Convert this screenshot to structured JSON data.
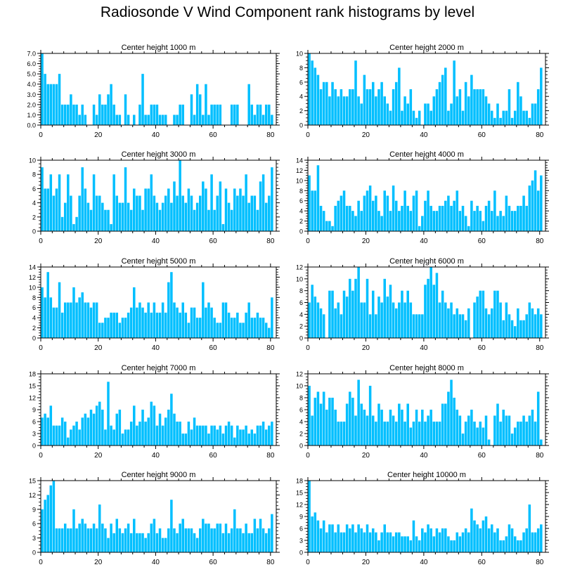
{
  "title": "Radiosonde V Wind Component rank histograms by level",
  "bar_color": "#00BFFF",
  "chart_data": [
    {
      "type": "bar",
      "title": "Center height 1000 m",
      "xlabel": "",
      "ylabel": "",
      "xlim": [
        0,
        82
      ],
      "xticks": [
        0,
        20,
        40,
        60,
        80
      ],
      "ylim": [
        0,
        7
      ],
      "yticks": [
        "0.0",
        "1.0",
        "2.0",
        "3.0",
        "4.0",
        "5.0",
        "6.0",
        "7.0"
      ],
      "values": [
        7,
        5,
        4,
        4,
        4,
        4,
        5,
        2,
        2,
        2,
        3,
        2,
        2,
        1,
        2,
        1,
        0,
        0,
        2,
        1,
        3,
        2,
        2,
        3,
        4,
        2,
        1,
        1,
        0,
        3,
        1,
        0,
        1,
        0,
        2,
        5,
        1,
        1,
        2,
        2,
        2,
        1,
        1,
        1,
        0,
        0,
        1,
        1,
        2,
        2,
        0,
        0,
        3,
        1,
        4,
        3,
        1,
        4,
        1,
        2,
        2,
        2,
        2,
        0,
        0,
        0,
        2,
        2,
        2,
        0,
        0,
        0,
        4,
        2,
        1,
        2,
        2,
        1,
        2,
        2,
        1
      ]
    },
    {
      "type": "bar",
      "title": "Center height 2000 m",
      "xlabel": "",
      "ylabel": "",
      "xlim": [
        0,
        82
      ],
      "xticks": [
        0,
        20,
        40,
        60,
        80
      ],
      "ylim": [
        0,
        10
      ],
      "yticks": [
        "0",
        "2",
        "4",
        "6",
        "8",
        "10"
      ],
      "values": [
        10,
        9,
        8,
        7,
        5,
        6,
        6,
        4,
        6,
        5,
        4,
        5,
        4,
        4,
        5,
        5,
        9,
        4,
        3,
        7,
        5,
        5,
        6,
        4,
        5,
        6,
        4,
        3,
        2,
        5,
        6,
        8,
        2,
        4,
        3,
        5,
        2,
        1,
        2,
        0,
        3,
        3,
        2,
        4,
        5,
        6,
        7,
        8,
        2,
        3,
        9,
        4,
        5,
        2,
        6,
        4,
        7,
        5,
        5,
        5,
        5,
        4,
        3,
        2,
        1,
        3,
        1,
        2,
        2,
        5,
        1,
        2,
        6,
        4,
        2,
        2,
        1,
        3,
        3,
        5,
        8
      ]
    },
    {
      "type": "bar",
      "title": "Center height 3000 m",
      "xlabel": "",
      "ylabel": "",
      "xlim": [
        0,
        82
      ],
      "xticks": [
        0,
        20,
        40,
        60,
        80
      ],
      "ylim": [
        0,
        10
      ],
      "yticks": [
        "0",
        "2",
        "4",
        "6",
        "8",
        "10"
      ],
      "values": [
        9,
        6,
        6,
        8,
        5,
        6,
        8,
        2,
        4,
        8,
        5,
        1,
        2,
        5,
        9,
        6,
        4,
        3,
        8,
        5,
        5,
        4,
        3,
        3,
        1,
        8,
        5,
        4,
        4,
        9,
        4,
        3,
        6,
        5,
        5,
        3,
        6,
        6,
        8,
        5,
        4,
        3,
        4,
        5,
        6,
        4,
        7,
        5,
        10,
        5,
        4,
        6,
        5,
        3,
        4,
        5,
        7,
        6,
        3,
        8,
        3,
        5,
        7,
        1,
        6,
        4,
        3,
        6,
        5,
        6,
        5,
        8,
        4,
        5,
        5,
        3,
        7,
        8,
        4,
        5,
        9
      ]
    },
    {
      "type": "bar",
      "title": "Center height 4000 m",
      "xlabel": "",
      "ylabel": "",
      "xlim": [
        0,
        82
      ],
      "xticks": [
        0,
        20,
        40,
        60,
        80
      ],
      "ylim": [
        0,
        14
      ],
      "yticks": [
        "0",
        "2",
        "4",
        "6",
        "8",
        "10",
        "12",
        "14"
      ],
      "values": [
        11,
        8,
        8,
        13,
        5,
        4,
        2,
        2,
        1,
        5,
        6,
        7,
        8,
        5,
        5,
        4,
        3,
        6,
        4,
        7,
        8,
        9,
        6,
        7,
        4,
        3,
        8,
        7,
        4,
        9,
        6,
        4,
        5,
        8,
        5,
        4,
        7,
        8,
        1,
        3,
        6,
        8,
        5,
        4,
        4,
        5,
        5,
        6,
        7,
        5,
        6,
        8,
        4,
        5,
        3,
        1,
        6,
        4,
        5,
        4,
        2,
        5,
        6,
        4,
        8,
        3,
        4,
        3,
        7,
        5,
        4,
        4,
        5,
        5,
        7,
        5,
        9,
        10,
        12,
        8,
        11
      ]
    },
    {
      "type": "bar",
      "title": "Center height 5000 m",
      "xlabel": "",
      "ylabel": "",
      "xlim": [
        0,
        82
      ],
      "xticks": [
        0,
        20,
        40,
        60,
        80
      ],
      "ylim": [
        0,
        14
      ],
      "yticks": [
        "0",
        "2",
        "4",
        "6",
        "8",
        "10",
        "12",
        "14"
      ],
      "values": [
        10,
        8,
        13,
        8,
        6,
        6,
        11,
        5,
        7,
        7,
        7,
        10,
        7,
        8,
        9,
        7,
        7,
        6,
        7,
        7,
        3,
        3,
        4,
        4,
        5,
        5,
        5,
        3,
        4,
        4,
        5,
        6,
        10,
        6,
        7,
        6,
        5,
        7,
        5,
        7,
        5,
        5,
        7,
        5,
        11,
        13,
        7,
        6,
        5,
        7,
        5,
        3,
        6,
        6,
        4,
        4,
        11,
        6,
        7,
        6,
        4,
        3,
        3,
        7,
        7,
        5,
        4,
        4,
        5,
        3,
        3,
        5,
        7,
        4,
        4,
        5,
        4,
        4,
        3,
        2,
        8
      ]
    },
    {
      "type": "bar",
      "title": "Center height 6000 m",
      "xlabel": "",
      "ylabel": "",
      "xlim": [
        0,
        82
      ],
      "xticks": [
        0,
        20,
        40,
        60,
        80
      ],
      "ylim": [
        0,
        12
      ],
      "yticks": [
        "0",
        "2",
        "4",
        "6",
        "8",
        "10",
        "12"
      ],
      "values": [
        6,
        9,
        7,
        6,
        5,
        4,
        0,
        8,
        8,
        5,
        6,
        4,
        8,
        7,
        10,
        8,
        10,
        12,
        6,
        6,
        10,
        4,
        8,
        4,
        7,
        6,
        10,
        7,
        9,
        6,
        5,
        6,
        8,
        6,
        8,
        6,
        4,
        4,
        4,
        4,
        9,
        10,
        12,
        9,
        11,
        6,
        8,
        6,
        5,
        6,
        4,
        5,
        4,
        4,
        3,
        5,
        0,
        6,
        7,
        8,
        8,
        5,
        4,
        5,
        8,
        8,
        6,
        3,
        6,
        4,
        3,
        2,
        5,
        3,
        3,
        4,
        6,
        5,
        4,
        5,
        4
      ]
    },
    {
      "type": "bar",
      "title": "Center height 7000 m",
      "xlabel": "",
      "ylabel": "",
      "xlim": [
        0,
        82
      ],
      "xticks": [
        0,
        20,
        40,
        60,
        80
      ],
      "ylim": [
        0,
        18
      ],
      "yticks": [
        "0",
        "3",
        "6",
        "9",
        "12",
        "15",
        "18"
      ],
      "values": [
        7,
        8,
        7,
        10,
        5,
        5,
        5,
        7,
        6,
        2,
        4,
        5,
        6,
        4,
        7,
        8,
        7,
        9,
        8,
        10,
        11,
        9,
        4,
        16,
        5,
        4,
        8,
        9,
        3,
        4,
        4,
        6,
        10,
        5,
        6,
        9,
        6,
        7,
        11,
        10,
        5,
        8,
        5,
        7,
        9,
        13,
        8,
        6,
        6,
        3,
        3,
        6,
        4,
        7,
        5,
        5,
        5,
        5,
        3,
        5,
        5,
        4,
        5,
        3,
        5,
        6,
        5,
        2,
        5,
        4,
        4,
        5,
        3,
        4,
        3,
        5,
        5,
        6,
        4,
        5,
        6
      ]
    },
    {
      "type": "bar",
      "title": "Center height 8000 m",
      "xlabel": "",
      "ylabel": "",
      "xlim": [
        0,
        82
      ],
      "xticks": [
        0,
        20,
        40,
        60,
        80
      ],
      "ylim": [
        0,
        12
      ],
      "yticks": [
        "0",
        "2",
        "4",
        "6",
        "8",
        "10",
        "12"
      ],
      "values": [
        10,
        5,
        8,
        9,
        7,
        9,
        6,
        8,
        8,
        6,
        4,
        4,
        4,
        7,
        9,
        8,
        5,
        11,
        7,
        6,
        5,
        10,
        5,
        4,
        7,
        6,
        4,
        4,
        6,
        5,
        4,
        7,
        6,
        4,
        7,
        3,
        4,
        6,
        4,
        6,
        4,
        5,
        6,
        4,
        4,
        4,
        7,
        7,
        9,
        11,
        8,
        6,
        5,
        2,
        4,
        5,
        6,
        4,
        3,
        4,
        3,
        5,
        1,
        0,
        5,
        7,
        4,
        6,
        5,
        5,
        2,
        3,
        4,
        4,
        5,
        4,
        5,
        6,
        4,
        9,
        1
      ]
    },
    {
      "type": "bar",
      "title": "Center height 9000 m",
      "xlabel": "",
      "ylabel": "",
      "xlim": [
        0,
        82
      ],
      "xticks": [
        0,
        20,
        40,
        60,
        80
      ],
      "ylim": [
        0,
        15
      ],
      "yticks": [
        "0",
        "3",
        "6",
        "9",
        "12",
        "15"
      ],
      "values": [
        9,
        11,
        12,
        14,
        15,
        5,
        5,
        5,
        6,
        5,
        5,
        9,
        5,
        6,
        7,
        6,
        5,
        5,
        6,
        5,
        10,
        6,
        5,
        3,
        6,
        4,
        7,
        5,
        4,
        5,
        6,
        4,
        7,
        4,
        4,
        4,
        3,
        4,
        6,
        7,
        4,
        5,
        3,
        3,
        5,
        11,
        5,
        4,
        6,
        7,
        5,
        5,
        5,
        4,
        3,
        5,
        7,
        6,
        6,
        5,
        5,
        6,
        6,
        4,
        6,
        4,
        5,
        9,
        5,
        5,
        4,
        6,
        4,
        4,
        7,
        5,
        7,
        5,
        4,
        5,
        8
      ]
    },
    {
      "type": "bar",
      "title": "Center height 10000 m",
      "xlabel": "",
      "ylabel": "",
      "xlim": [
        0,
        82
      ],
      "xticks": [
        0,
        20,
        40,
        60,
        80
      ],
      "ylim": [
        0,
        18
      ],
      "yticks": [
        "0",
        "3",
        "6",
        "9",
        "12",
        "15",
        "18"
      ],
      "values": [
        18,
        9,
        10,
        8,
        6,
        8,
        5,
        7,
        7,
        5,
        7,
        5,
        5,
        7,
        6,
        7,
        5,
        7,
        6,
        5,
        7,
        5,
        6,
        5,
        3,
        5,
        7,
        5,
        5,
        4,
        5,
        5,
        4,
        4,
        4,
        3,
        8,
        4,
        3,
        6,
        5,
        7,
        6,
        4,
        6,
        5,
        6,
        6,
        4,
        3,
        3,
        5,
        4,
        5,
        6,
        5,
        11,
        8,
        7,
        6,
        8,
        9,
        6,
        7,
        5,
        6,
        3,
        3,
        4,
        7,
        6,
        4,
        3,
        3,
        5,
        6,
        12,
        5,
        5,
        6,
        7
      ]
    }
  ]
}
